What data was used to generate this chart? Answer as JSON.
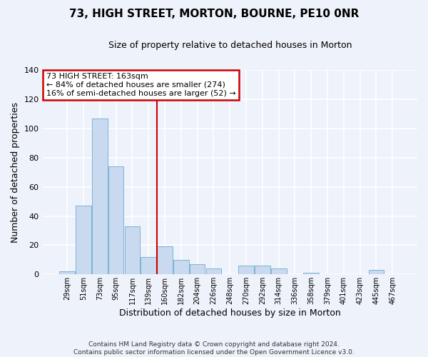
{
  "title": "73, HIGH STREET, MORTON, BOURNE, PE10 0NR",
  "subtitle": "Size of property relative to detached houses in Morton",
  "xlabel": "Distribution of detached houses by size in Morton",
  "ylabel": "Number of detached properties",
  "bar_color": "#c9d9f0",
  "bar_edge_color": "#7ab4d4",
  "background_color": "#eef2fa",
  "grid_color": "#ffffff",
  "categories": [
    "29sqm",
    "51sqm",
    "73sqm",
    "95sqm",
    "117sqm",
    "139sqm",
    "160sqm",
    "182sqm",
    "204sqm",
    "226sqm",
    "248sqm",
    "270sqm",
    "292sqm",
    "314sqm",
    "336sqm",
    "358sqm",
    "379sqm",
    "401sqm",
    "423sqm",
    "445sqm",
    "467sqm"
  ],
  "values": [
    2,
    47,
    107,
    74,
    33,
    12,
    19,
    10,
    7,
    4,
    0,
    6,
    6,
    4,
    0,
    1,
    0,
    0,
    0,
    3,
    0
  ],
  "ylim": [
    0,
    140
  ],
  "yticks": [
    0,
    20,
    40,
    60,
    80,
    100,
    120,
    140
  ],
  "vline_color": "#cc0000",
  "annotation_title": "73 HIGH STREET: 163sqm",
  "annotation_line1": "← 84% of detached houses are smaller (274)",
  "annotation_line2": "16% of semi-detached houses are larger (52) →",
  "annotation_box_color": "#cc0000",
  "footer1": "Contains HM Land Registry data © Crown copyright and database right 2024.",
  "footer2": "Contains public sector information licensed under the Open Government Licence v3.0."
}
